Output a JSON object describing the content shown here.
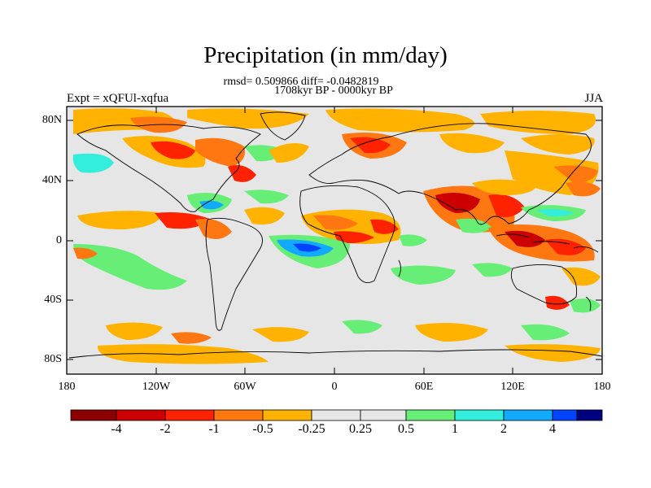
{
  "title": "Precipitation (in mm/day)",
  "stats": "rmsd= 0.509866 diff= -0.0482819",
  "periods": "1708kyr BP - 0000kyr BP",
  "experiment": "Expt = xQFUl-xqfua",
  "season": "JJA",
  "map": {
    "projection": "cylindrical-equidistant",
    "lon_range": [
      -180,
      180
    ],
    "lat_range": [
      -90,
      90
    ],
    "y_ticks": [
      "80N",
      "40N",
      "0",
      "40S",
      "80S"
    ],
    "x_ticks": [
      "180",
      "120W",
      "60W",
      "0",
      "60E",
      "120E",
      "180"
    ],
    "background_color": "#e6e6e6"
  },
  "colorbar": {
    "colors": [
      "#8b0000",
      "#cc0000",
      "#ff2200",
      "#ff7711",
      "#ffb300",
      "#e6e6e6",
      "#e6e6e6",
      "#66ee77",
      "#33eedd",
      "#11aaff",
      "#0044ff",
      "#000080"
    ],
    "labels": [
      "-4",
      "-2",
      "-1",
      "-0.5",
      "-0.25",
      "0.25",
      "0.5",
      "1",
      "2",
      "4"
    ]
  }
}
